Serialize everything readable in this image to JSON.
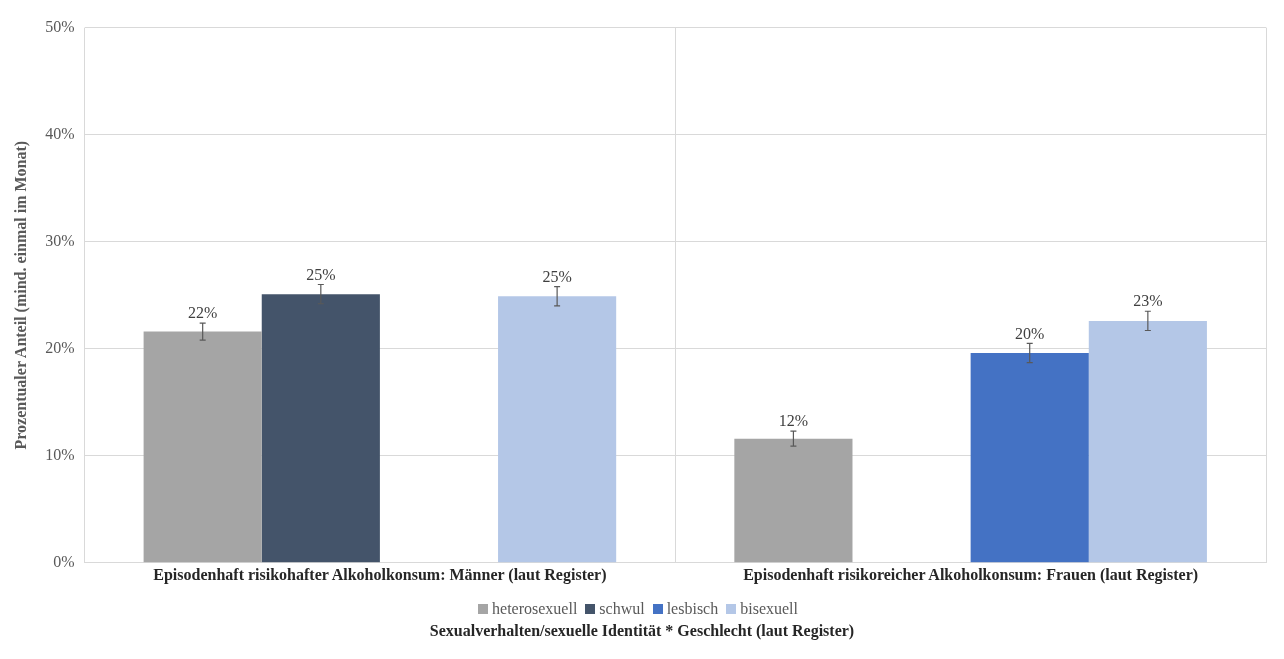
{
  "chart_data": {
    "type": "bar",
    "ylabel": "Prozentualer Anteil (mind. einmal im Monat)",
    "legend_title": "Sexualverhalten/sexuelle Identität * Geschlecht (laut Register)",
    "categories": [
      "Episodenhaft risikohafter Alkoholkonsum: Männer (laut Register)",
      "Episodenhaft risikoreicher Alkoholkonsum: Frauen (laut Register)"
    ],
    "series": [
      {
        "name": "heterosexuell",
        "color": "#a5a5a5",
        "values": [
          21.6,
          11.6
        ],
        "errors": [
          0.8,
          0.7
        ],
        "value_labels": [
          "22%",
          "12%"
        ]
      },
      {
        "name": "schwul",
        "color": "#44546a",
        "values": [
          25.1,
          null
        ],
        "errors": [
          0.9,
          null
        ],
        "value_labels": [
          "25%",
          null
        ]
      },
      {
        "name": "lesbisch",
        "color": "#4472c4",
        "values": [
          null,
          19.6
        ],
        "errors": [
          null,
          0.9
        ],
        "value_labels": [
          null,
          "20%"
        ]
      },
      {
        "name": "bisexuell",
        "color": "#b4c7e7",
        "values": [
          24.9,
          22.6
        ],
        "errors": [
          0.9,
          0.9
        ],
        "value_labels": [
          "25%",
          "23%"
        ]
      }
    ],
    "ylim": [
      0,
      50
    ],
    "yticks": [
      {
        "value": 0,
        "label": "0%"
      },
      {
        "value": 10,
        "label": "10%"
      },
      {
        "value": 20,
        "label": "20%"
      },
      {
        "value": 30,
        "label": "30%"
      },
      {
        "value": 40,
        "label": "40%"
      },
      {
        "value": 50,
        "label": "50%"
      }
    ],
    "grid": true,
    "legend": "bottom"
  }
}
